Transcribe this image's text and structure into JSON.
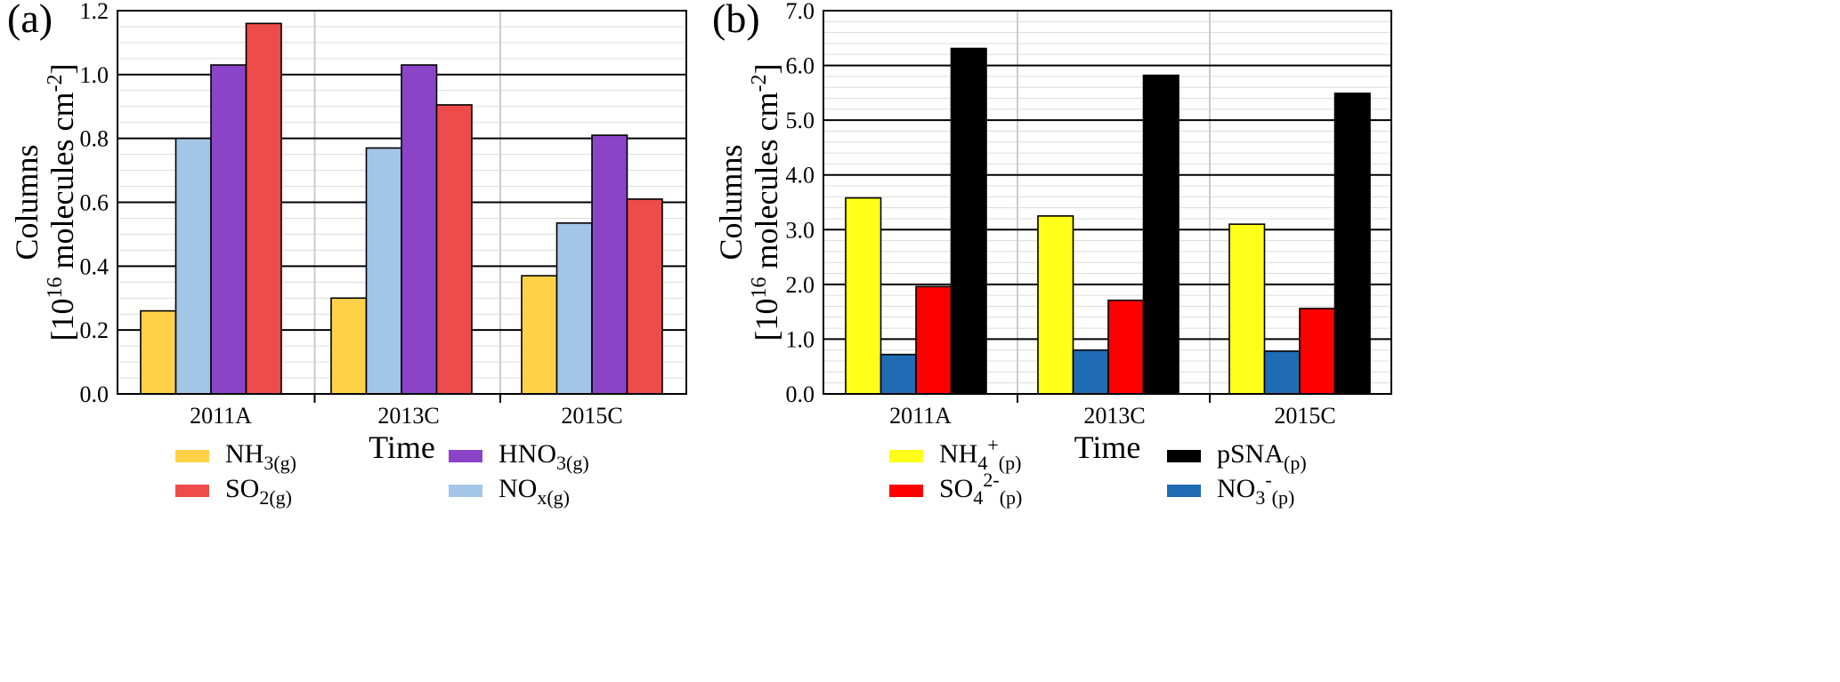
{
  "chart_data": [
    {
      "panel": "(a)",
      "type": "bar",
      "categories": [
        "2011A",
        "2013C",
        "2015C"
      ],
      "xlabel": "Time",
      "ylabel_line1": "Columns",
      "ylabel_line2": {
        "pre": "[10",
        "sup": "16",
        "post": " molecules cm",
        "sup2": "-2",
        "end": "]"
      },
      "ylim": [
        0,
        1.2
      ],
      "yticks": [
        0.0,
        0.2,
        0.4,
        0.6,
        0.8,
        1.0,
        1.2
      ],
      "ytick_labels": [
        "0.0",
        "0.2",
        "0.4",
        "0.6",
        "0.8",
        "1.0",
        "1.2"
      ],
      "minor_step": 0.05,
      "grid": true,
      "series": [
        {
          "id": "nh3",
          "label": {
            "base": "NH",
            "sub": "3(g)"
          },
          "color": "#ffd147",
          "values": [
            0.26,
            0.3,
            0.37
          ]
        },
        {
          "id": "nox",
          "label": {
            "base": "NO",
            "sub": "x(g)"
          },
          "color": "#a3c6e6",
          "values": [
            0.8,
            0.77,
            0.535
          ]
        },
        {
          "id": "hno3",
          "label": {
            "base": "HNO",
            "sub": "3(g)"
          },
          "color": "#8b44c8",
          "values": [
            1.03,
            1.03,
            0.81
          ]
        },
        {
          "id": "so2",
          "label": {
            "base": "SO",
            "sub": "2(g)"
          },
          "color": "#ee4b4b",
          "values": [
            1.16,
            0.905,
            0.61
          ]
        }
      ],
      "legend": {
        "placement": "bottom",
        "order": [
          [
            "nh3",
            "hno3"
          ],
          [
            "so2",
            "nox"
          ]
        ]
      }
    },
    {
      "panel": "(b)",
      "type": "bar",
      "categories": [
        "2011A",
        "2013C",
        "2015C"
      ],
      "xlabel": "Time",
      "ylabel_line1": "Columns",
      "ylabel_line2": {
        "pre": "[10",
        "sup": "16",
        "post": " molecules cm",
        "sup2": "-2",
        "end": "]"
      },
      "ylim": [
        0,
        7.0
      ],
      "yticks": [
        0.0,
        1.0,
        2.0,
        3.0,
        4.0,
        5.0,
        6.0,
        7.0
      ],
      "ytick_labels": [
        "0.0",
        "1.0",
        "2.0",
        "3.0",
        "4.0",
        "5.0",
        "6.0",
        "7.0"
      ],
      "minor_step": 0.2,
      "grid": true,
      "series": [
        {
          "id": "nh4",
          "label": {
            "base": "NH",
            "sub": "4",
            "sup": "+",
            "sub2": "(p)"
          },
          "color": "#ffff1a",
          "values": [
            3.58,
            3.25,
            3.1
          ]
        },
        {
          "id": "no3",
          "label": {
            "base": "NO",
            "sub": "3",
            "sup": "-",
            "sub2": "(p)"
          },
          "color": "#1f6cb5",
          "values": [
            0.72,
            0.8,
            0.78
          ]
        },
        {
          "id": "so4",
          "label": {
            "base": "SO",
            "sub": "4",
            "sup": "2-",
            "sub2": "(p)"
          },
          "color": "#ff0000",
          "values": [
            1.96,
            1.71,
            1.56
          ]
        },
        {
          "id": "psna",
          "label": {
            "base": "pSNA",
            "sub": "(p)"
          },
          "color": "#000000",
          "values": [
            6.31,
            5.82,
            5.49
          ]
        }
      ],
      "legend": {
        "placement": "bottom",
        "order": [
          [
            "nh4",
            "psna"
          ],
          [
            "so4",
            "no3"
          ]
        ]
      }
    }
  ]
}
